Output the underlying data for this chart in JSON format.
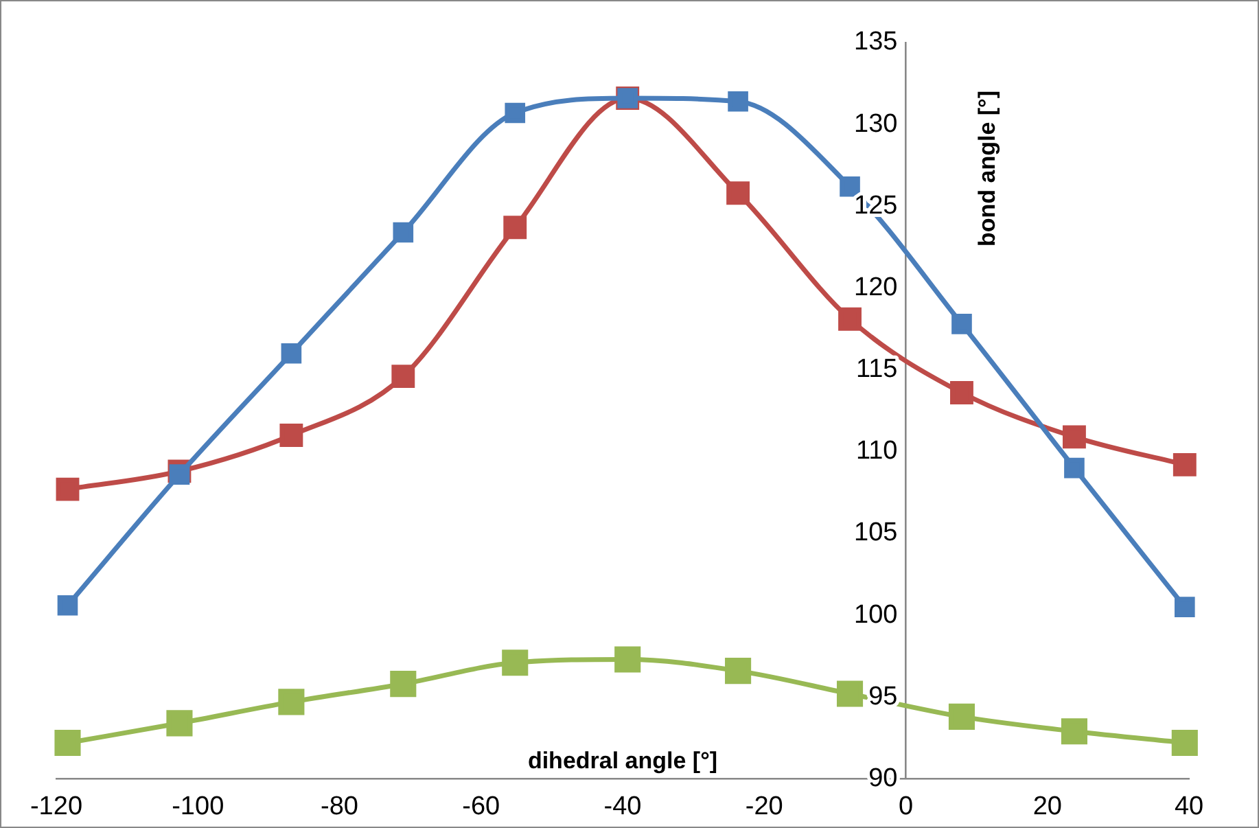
{
  "chart_data": {
    "type": "line",
    "xlabel": "dihedral angle [°]",
    "ylabel": "bond angle [°]",
    "x": [
      -118.4,
      -102.6,
      -86.8,
      -71.0,
      -55.2,
      -39.3,
      -23.7,
      -7.9,
      7.9,
      23.8,
      39.4
    ],
    "series": [
      {
        "color": "#4a7ebb",
        "values": [
          100.6,
          108.6,
          116.0,
          123.4,
          130.7,
          131.6,
          131.4,
          126.2,
          117.8,
          109.0,
          100.5
        ]
      },
      {
        "color": "#be4b48",
        "values": [
          107.7,
          108.8,
          111.0,
          114.6,
          123.7,
          131.6,
          125.8,
          118.1,
          113.6,
          110.9,
          109.2
        ]
      },
      {
        "color": "#98b954",
        "values": [
          92.2,
          93.4,
          94.7,
          95.8,
          97.1,
          97.3,
          96.6,
          95.2,
          93.8,
          92.9,
          92.2
        ]
      }
    ],
    "xlim": [
      -120,
      40
    ],
    "xticks": [
      -120,
      -100,
      -80,
      -60,
      -40,
      -20,
      0,
      20,
      40
    ],
    "ylim": [
      90,
      135
    ],
    "yticks": [
      90,
      95,
      100,
      105,
      110,
      115,
      120,
      125,
      130,
      135
    ],
    "grid": false,
    "legend": false,
    "marker": "square",
    "line_style": "solid"
  }
}
